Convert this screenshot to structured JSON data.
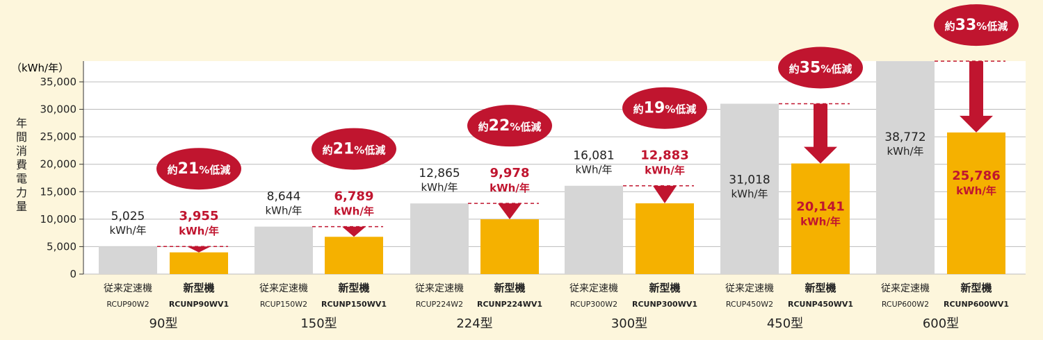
{
  "chart_data": {
    "type": "bar",
    "unit_label": "（kWh/年）",
    "ylabel": "年間消費電力量",
    "ylim": [
      0,
      38772
    ],
    "yticks": [
      0,
      5000,
      10000,
      15000,
      20000,
      25000,
      30000,
      35000
    ],
    "ytick_labels": [
      "0",
      "5,000",
      "10,000",
      "15,000",
      "20,000",
      "25,000",
      "30,000",
      "35,000"
    ],
    "value_unit": "kWh/年",
    "series": [
      {
        "name": "従来定速機",
        "values": [
          5025,
          8644,
          12865,
          16081,
          31018,
          38772
        ]
      },
      {
        "name": "新型機",
        "values": [
          3955,
          6789,
          9978,
          12883,
          20141,
          25786
        ]
      }
    ],
    "groups": [
      {
        "category": "90型",
        "old_label": "5,025",
        "new_label": "3,955",
        "old_model": "RCUP90W2",
        "new_model": "RCUNP90WV1",
        "reduction": {
          "prefix": "約",
          "number": "21",
          "suffix": "%低減"
        }
      },
      {
        "category": "150型",
        "old_label": "8,644",
        "new_label": "6,789",
        "old_model": "RCUP150W2",
        "new_model": "RCUNP150WV1",
        "reduction": {
          "prefix": "約",
          "number": "21",
          "suffix": "%低減"
        }
      },
      {
        "category": "224型",
        "old_label": "12,865",
        "new_label": "9,978",
        "old_model": "RCUP224W2",
        "new_model": "RCUNP224WV1",
        "reduction": {
          "prefix": "約",
          "number": "22",
          "suffix": "%低減"
        }
      },
      {
        "category": "300型",
        "old_label": "16,081",
        "new_label": "12,883",
        "old_model": "RCUP300W2",
        "new_model": "RCUNP300WV1",
        "reduction": {
          "prefix": "約",
          "number": "19",
          "suffix": "%低減"
        }
      },
      {
        "category": "450型",
        "old_label": "31,018",
        "new_label": "20,141",
        "old_model": "RCUP450W2",
        "new_model": "RCUNP450WV1",
        "reduction": {
          "prefix": "約",
          "number": "35",
          "suffix": "%低減"
        }
      },
      {
        "category": "600型",
        "old_label": "38,772",
        "new_label": "25,786",
        "old_model": "RCUP600W2",
        "new_model": "RCUNP600WV1",
        "reduction": {
          "prefix": "約",
          "number": "33",
          "suffix": "%低減"
        }
      }
    ],
    "colors": {
      "old_bar": "#d6d6d6",
      "new_bar": "#f5b100",
      "accent": "#c0152f",
      "background": "#fdf6dc",
      "plot_background": "#ffffff",
      "grid": "#bbbbbb",
      "text": "#222222"
    }
  }
}
